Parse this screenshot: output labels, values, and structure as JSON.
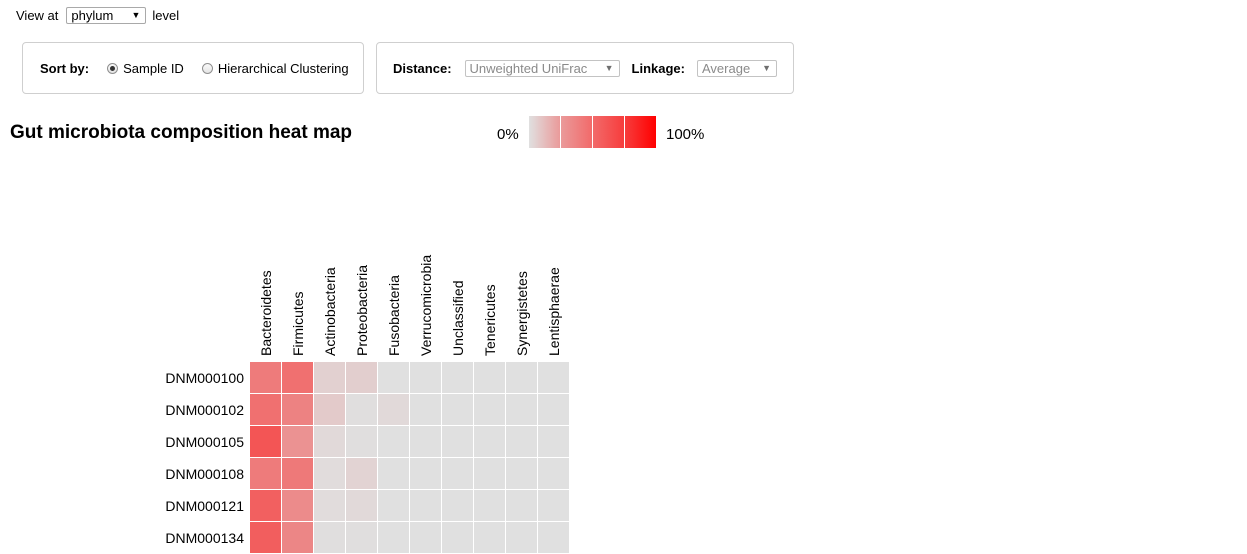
{
  "view": {
    "prefix": "View at",
    "level_value": "phylum",
    "suffix": "level"
  },
  "sort": {
    "label": "Sort by:",
    "options": [
      {
        "label": "Sample ID",
        "checked": true
      },
      {
        "label": "Hierarchical Clustering",
        "checked": false
      }
    ]
  },
  "distance": {
    "label": "Distance:",
    "value": "Unweighted UniFrac"
  },
  "linkage": {
    "label": "Linkage:",
    "value": "Average"
  },
  "legend": {
    "min_label": "0%",
    "max_label": "100%",
    "colors": [
      "#e0e0e0",
      "#ea9a9a",
      "#f26a6a",
      "#f73c3c",
      "#ff0000"
    ]
  },
  "chart_data": {
    "type": "heatmap",
    "title": "Gut microbiota composition heat map",
    "columns": [
      "Bacteroidetes",
      "Firmicutes",
      "Actinobacteria",
      "Proteobacteria",
      "Fusobacteria",
      "Verrucomicrobia",
      "Unclassified",
      "Tenericutes",
      "Synergistetes",
      "Lentisphaerae"
    ],
    "rows": [
      "DNM000100",
      "DNM000102",
      "DNM000105",
      "DNM000108",
      "DNM000121",
      "DNM000134"
    ],
    "values": [
      [
        45,
        50,
        7,
        8,
        0,
        0,
        0,
        0,
        0,
        0
      ],
      [
        50,
        42,
        10,
        1,
        3,
        0,
        0,
        0,
        0,
        0
      ],
      [
        62,
        35,
        3,
        1,
        0,
        0,
        0,
        0,
        0,
        0
      ],
      [
        45,
        46,
        2,
        6,
        0,
        0,
        0,
        0,
        0,
        0
      ],
      [
        57,
        38,
        2,
        3,
        0,
        0,
        0,
        0,
        0,
        0
      ],
      [
        58,
        40,
        1,
        1,
        0,
        0,
        0,
        0,
        0,
        0
      ]
    ],
    "scale": {
      "min": 0,
      "max": 100,
      "min_color": "#e0e0e0",
      "max_color": "#ff0000"
    }
  }
}
